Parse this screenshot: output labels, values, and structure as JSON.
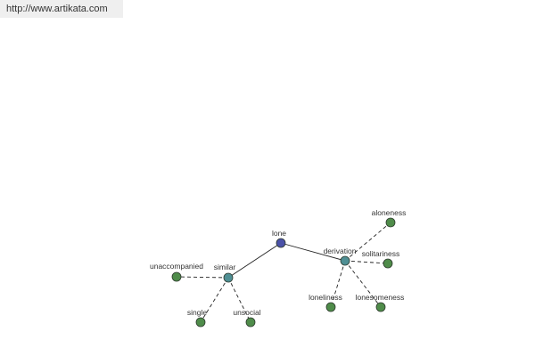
{
  "watermark": {
    "url": "http://www.artikata.com"
  },
  "colors": {
    "root_node": "#4b52a8",
    "hub_node": "#4f8f94",
    "leaf_node": "#4f8c4a",
    "node_stroke": "#2e3a2e",
    "edge": "#222222",
    "watermark_bg": "#efefef"
  },
  "graph": {
    "nodes": [
      {
        "id": "lone",
        "label": "lone",
        "kind": "root"
      },
      {
        "id": "similar",
        "label": "similar",
        "kind": "hub"
      },
      {
        "id": "derivation",
        "label": "derivation",
        "kind": "hub"
      },
      {
        "id": "unaccompanied",
        "label": "unaccompanied",
        "kind": "leaf"
      },
      {
        "id": "single",
        "label": "single",
        "kind": "leaf"
      },
      {
        "id": "unsocial",
        "label": "unsocial",
        "kind": "leaf"
      },
      {
        "id": "aloneness",
        "label": "aloneness",
        "kind": "leaf"
      },
      {
        "id": "solitariness",
        "label": "solitariness",
        "kind": "leaf"
      },
      {
        "id": "loneliness",
        "label": "loneliness",
        "kind": "leaf"
      },
      {
        "id": "lonesomeness",
        "label": "lonesomeness",
        "kind": "leaf"
      }
    ],
    "edges": [
      {
        "from": "lone",
        "to": "similar",
        "style": "solid"
      },
      {
        "from": "lone",
        "to": "derivation",
        "style": "solid"
      },
      {
        "from": "similar",
        "to": "unaccompanied",
        "style": "dashed"
      },
      {
        "from": "similar",
        "to": "single",
        "style": "dashed"
      },
      {
        "from": "similar",
        "to": "unsocial",
        "style": "dashed"
      },
      {
        "from": "derivation",
        "to": "aloneness",
        "style": "dashed"
      },
      {
        "from": "derivation",
        "to": "solitariness",
        "style": "dashed"
      },
      {
        "from": "derivation",
        "to": "loneliness",
        "style": "dashed"
      },
      {
        "from": "derivation",
        "to": "lonesomeness",
        "style": "dashed"
      }
    ]
  }
}
